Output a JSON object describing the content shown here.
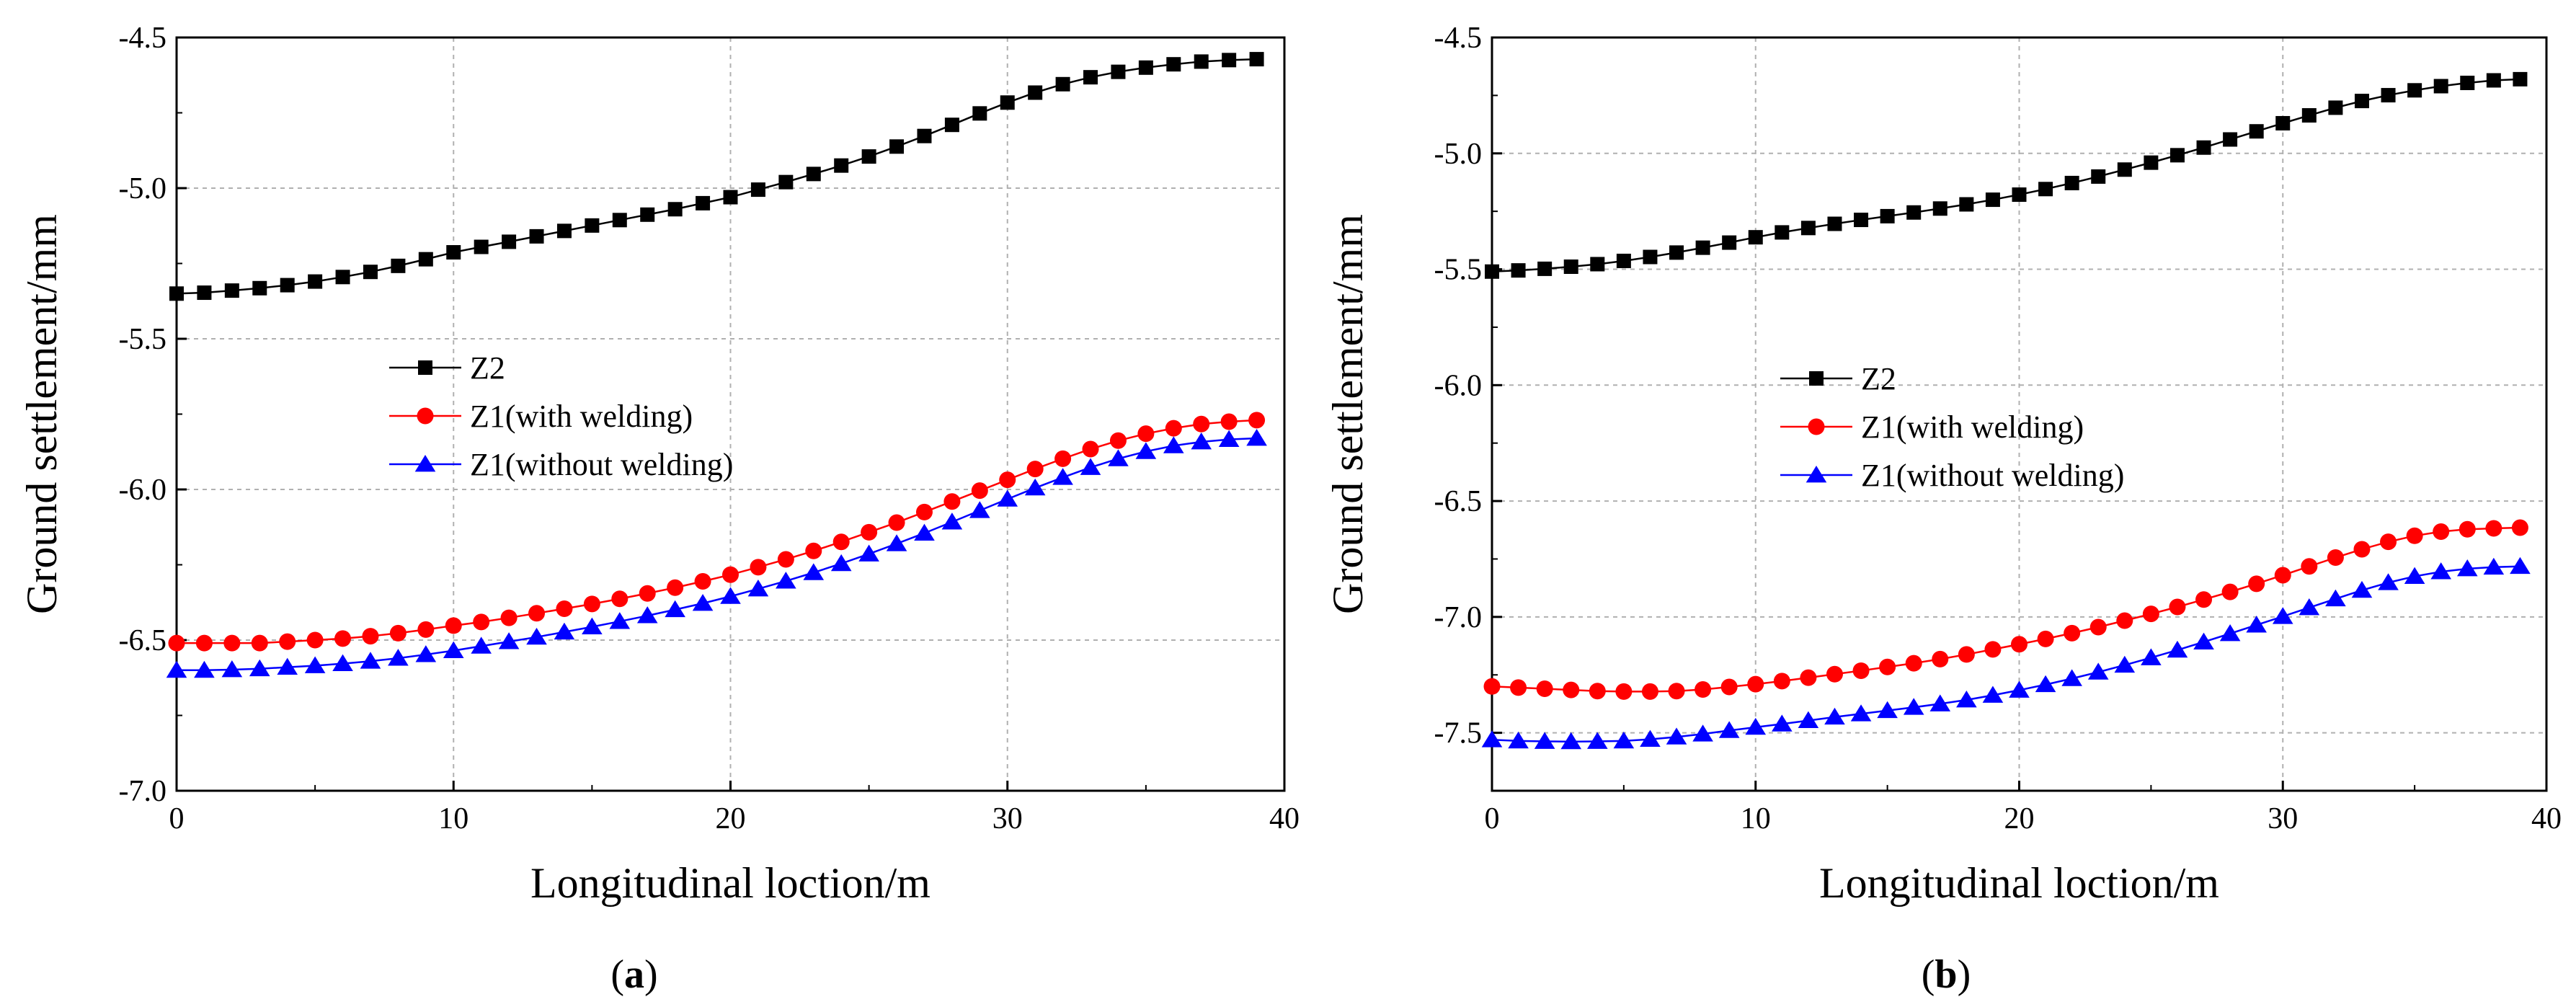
{
  "chart_data": [
    {
      "type": "line",
      "panel_label": "(a)",
      "xlabel": "Longitudinal loction/m",
      "ylabel": "Ground settlement/mm",
      "xlim": [
        0,
        40
      ],
      "ylim": [
        -7.0,
        -4.5
      ],
      "xticks": [
        "0",
        "10",
        "20",
        "30",
        "40"
      ],
      "yticks": [
        "-4.5",
        "-5.0",
        "-5.5",
        "-6.0",
        "-6.5",
        "-7.0"
      ],
      "grid": true,
      "legend_position": "center-left",
      "x": [
        0,
        1,
        2,
        3,
        4,
        5,
        6,
        7,
        8,
        9,
        10,
        11,
        12,
        13,
        14,
        15,
        16,
        17,
        18,
        19,
        20,
        21,
        22,
        23,
        24,
        25,
        26,
        27,
        28,
        29,
        30,
        31,
        32,
        33,
        34,
        35,
        36,
        37,
        38,
        39
      ],
      "series": [
        {
          "name": "Z2",
          "color": "#000000",
          "marker": "square",
          "values": [
            -5.35,
            -5.347,
            -5.34,
            -5.332,
            -5.322,
            -5.31,
            -5.295,
            -5.278,
            -5.258,
            -5.236,
            -5.213,
            -5.195,
            -5.178,
            -5.16,
            -5.142,
            -5.124,
            -5.106,
            -5.088,
            -5.07,
            -5.05,
            -5.03,
            -5.005,
            -4.98,
            -4.953,
            -4.925,
            -4.895,
            -4.862,
            -4.827,
            -4.79,
            -4.752,
            -4.716,
            -4.683,
            -4.655,
            -4.632,
            -4.614,
            -4.6,
            -4.589,
            -4.58,
            -4.575,
            -4.572
          ]
        },
        {
          "name": "Z1(with welding)",
          "color": "#ff0000",
          "marker": "circle",
          "values": [
            -6.51,
            -6.51,
            -6.51,
            -6.51,
            -6.505,
            -6.5,
            -6.495,
            -6.487,
            -6.477,
            -6.465,
            -6.452,
            -6.44,
            -6.426,
            -6.411,
            -6.396,
            -6.38,
            -6.363,
            -6.345,
            -6.326,
            -6.305,
            -6.283,
            -6.258,
            -6.232,
            -6.204,
            -6.174,
            -6.142,
            -6.11,
            -6.075,
            -6.04,
            -6.004,
            -5.968,
            -5.932,
            -5.898,
            -5.866,
            -5.838,
            -5.815,
            -5.797,
            -5.783,
            -5.775,
            -5.77
          ]
        },
        {
          "name": "Z1(without welding)",
          "color": "#0000ff",
          "marker": "triangle",
          "values": [
            -6.6,
            -6.6,
            -6.598,
            -6.595,
            -6.59,
            -6.585,
            -6.578,
            -6.57,
            -6.56,
            -6.548,
            -6.535,
            -6.52,
            -6.505,
            -6.49,
            -6.473,
            -6.456,
            -6.438,
            -6.419,
            -6.399,
            -6.378,
            -6.355,
            -6.33,
            -6.304,
            -6.276,
            -6.246,
            -6.214,
            -6.18,
            -6.145,
            -6.108,
            -6.07,
            -6.032,
            -5.995,
            -5.96,
            -5.927,
            -5.898,
            -5.874,
            -5.855,
            -5.842,
            -5.834,
            -5.83
          ]
        }
      ]
    },
    {
      "type": "line",
      "panel_label": "(b)",
      "xlabel": "Longitudinal loction/m",
      "ylabel": "Ground settlement/mm",
      "xlim": [
        0,
        40
      ],
      "ylim": [
        -7.75,
        -4.5
      ],
      "xticks": [
        "0",
        "10",
        "20",
        "30",
        "40"
      ],
      "yticks": [
        "-4.5",
        "-5.0",
        "-5.5",
        "-6.0",
        "-6.5",
        "-7.0",
        "-7.5"
      ],
      "grid": true,
      "legend_position": "center-left",
      "x": [
        0,
        1,
        2,
        3,
        4,
        5,
        6,
        7,
        8,
        9,
        10,
        11,
        12,
        13,
        14,
        15,
        16,
        17,
        18,
        19,
        20,
        21,
        22,
        23,
        24,
        25,
        26,
        27,
        28,
        29,
        30,
        31,
        32,
        33,
        34,
        35,
        36,
        37,
        38,
        39
      ],
      "series": [
        {
          "name": "Z2",
          "color": "#000000",
          "marker": "square",
          "values": [
            -5.51,
            -5.505,
            -5.498,
            -5.489,
            -5.478,
            -5.464,
            -5.447,
            -5.428,
            -5.407,
            -5.385,
            -5.362,
            -5.341,
            -5.322,
            -5.304,
            -5.287,
            -5.271,
            -5.255,
            -5.238,
            -5.22,
            -5.2,
            -5.178,
            -5.154,
            -5.128,
            -5.1,
            -5.07,
            -5.04,
            -5.008,
            -4.975,
            -4.94,
            -4.905,
            -4.87,
            -4.836,
            -4.803,
            -4.774,
            -4.749,
            -4.728,
            -4.71,
            -4.696,
            -4.685,
            -4.68
          ]
        },
        {
          "name": "Z1(with welding)",
          "color": "#ff0000",
          "marker": "circle",
          "values": [
            -7.3,
            -7.305,
            -7.31,
            -7.315,
            -7.32,
            -7.322,
            -7.322,
            -7.32,
            -7.313,
            -7.302,
            -7.29,
            -7.277,
            -7.262,
            -7.247,
            -7.232,
            -7.216,
            -7.2,
            -7.182,
            -7.162,
            -7.14,
            -7.118,
            -7.095,
            -7.07,
            -7.044,
            -7.016,
            -6.987,
            -6.957,
            -6.925,
            -6.892,
            -6.857,
            -6.82,
            -6.782,
            -6.744,
            -6.708,
            -6.676,
            -6.65,
            -6.632,
            -6.622,
            -6.618,
            -6.615
          ]
        },
        {
          "name": "Z1(without welding)",
          "color": "#0000ff",
          "marker": "triangle",
          "values": [
            -7.53,
            -7.535,
            -7.537,
            -7.538,
            -7.537,
            -7.535,
            -7.528,
            -7.518,
            -7.505,
            -7.49,
            -7.476,
            -7.462,
            -7.447,
            -7.432,
            -7.418,
            -7.404,
            -7.39,
            -7.375,
            -7.358,
            -7.338,
            -7.316,
            -7.292,
            -7.266,
            -7.238,
            -7.208,
            -7.176,
            -7.143,
            -7.108,
            -7.072,
            -7.035,
            -6.998,
            -6.96,
            -6.922,
            -6.885,
            -6.852,
            -6.825,
            -6.805,
            -6.792,
            -6.785,
            -6.782
          ]
        }
      ]
    }
  ]
}
